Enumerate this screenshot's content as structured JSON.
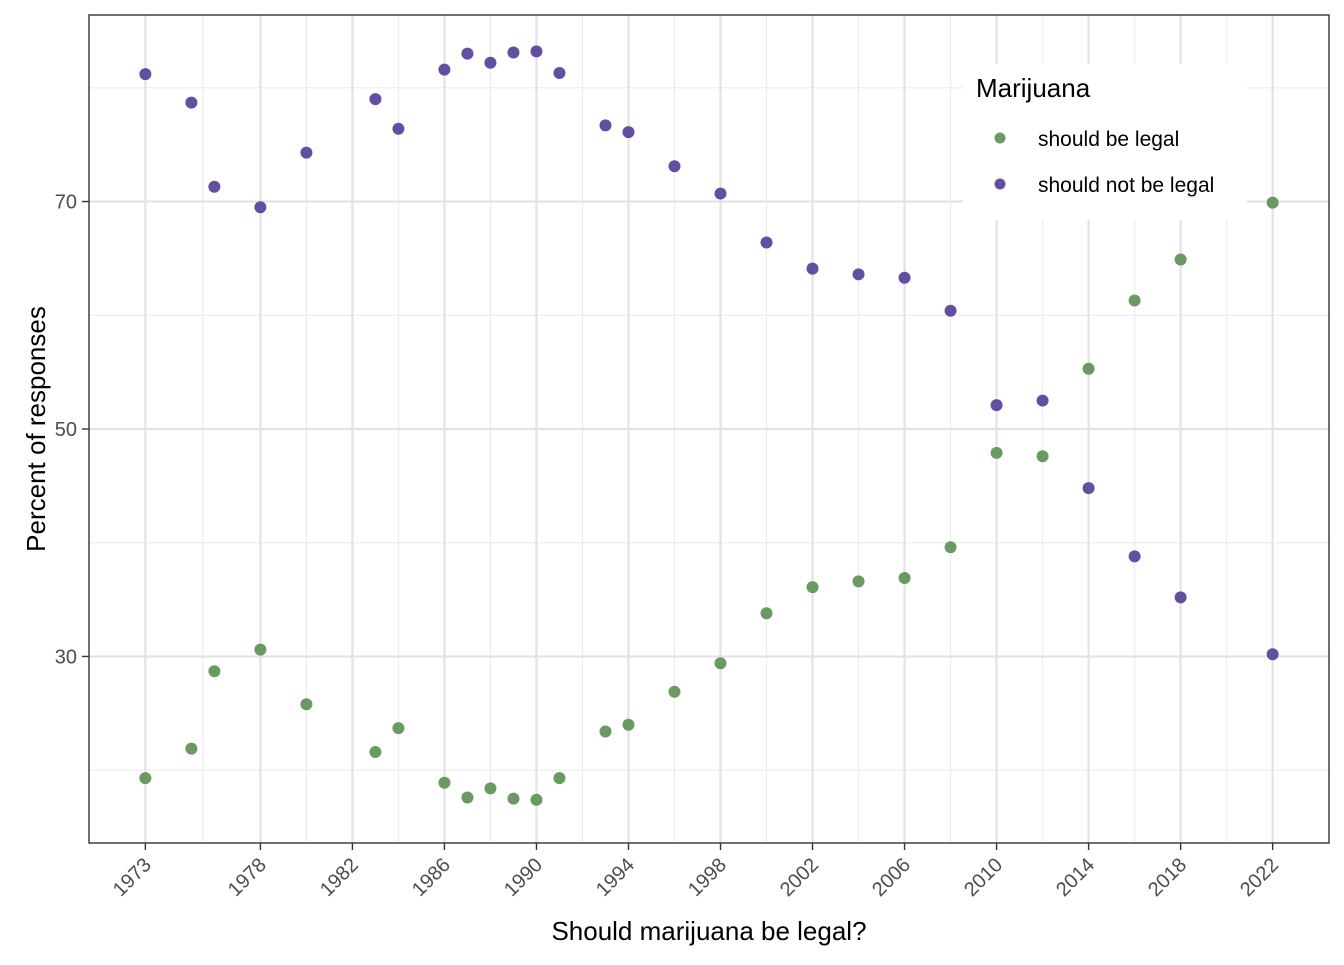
{
  "chart_data": {
    "type": "scatter",
    "title": "",
    "xlabel": "Should marijuana be legal?",
    "ylabel": "Percent of responses",
    "xlim": [
      1970.55,
      2024.45
    ],
    "ylim": [
      13.6,
      86.4
    ],
    "x_ticks": [
      1973,
      1978,
      1982,
      1986,
      1990,
      1994,
      1998,
      2002,
      2006,
      2010,
      2014,
      2018,
      2022
    ],
    "x_tick_labels": [
      "1973",
      "1978",
      "1982",
      "1986",
      "1990",
      "1994",
      "1998",
      "2002",
      "2006",
      "2010",
      "2014",
      "2018",
      "2022"
    ],
    "x_minor_gridlines": [
      1975.5,
      1980,
      1984,
      1988,
      1992,
      1996,
      2000,
      2004,
      2008,
      2012,
      2016,
      2020
    ],
    "y_ticks": [
      30,
      50,
      70
    ],
    "y_tick_labels": [
      "30",
      "50",
      "70"
    ],
    "y_minor_gridlines": [
      20,
      40,
      60,
      80
    ],
    "grid": true,
    "legend": {
      "title": "Marijuana",
      "position": "top-right"
    },
    "series": [
      {
        "name": "should be legal",
        "color": "#6a9a62",
        "points": [
          [
            1973,
            19.3
          ],
          [
            1975,
            21.9
          ],
          [
            1976,
            28.7
          ],
          [
            1978,
            30.6
          ],
          [
            1980,
            25.8
          ],
          [
            1983,
            21.6
          ],
          [
            1984,
            23.7
          ],
          [
            1986,
            18.9
          ],
          [
            1987,
            17.6
          ],
          [
            1988,
            18.4
          ],
          [
            1989,
            17.5
          ],
          [
            1990,
            17.4
          ],
          [
            1991,
            19.3
          ],
          [
            1993,
            23.4
          ],
          [
            1994,
            24.0
          ],
          [
            1996,
            26.9
          ],
          [
            1998,
            29.4
          ],
          [
            2000,
            33.8
          ],
          [
            2002,
            36.1
          ],
          [
            2004,
            36.6
          ],
          [
            2006,
            36.9
          ],
          [
            2008,
            39.6
          ],
          [
            2010,
            47.9
          ],
          [
            2012,
            47.6
          ],
          [
            2014,
            55.3
          ],
          [
            2016,
            61.3
          ],
          [
            2018,
            64.9
          ],
          [
            2022,
            69.9
          ]
        ]
      },
      {
        "name": "should not be legal",
        "color": "#634ea1",
        "points": [
          [
            1973,
            81.2
          ],
          [
            1975,
            78.7
          ],
          [
            1976,
            71.3
          ],
          [
            1978,
            69.5
          ],
          [
            1980,
            74.3
          ],
          [
            1983,
            79.0
          ],
          [
            1984,
            76.4
          ],
          [
            1986,
            81.6
          ],
          [
            1987,
            83.0
          ],
          [
            1988,
            82.2
          ],
          [
            1989,
            83.1
          ],
          [
            1990,
            83.2
          ],
          [
            1991,
            81.3
          ],
          [
            1993,
            76.7
          ],
          [
            1994,
            76.1
          ],
          [
            1996,
            73.1
          ],
          [
            1998,
            70.7
          ],
          [
            2000,
            66.4
          ],
          [
            2002,
            64.1
          ],
          [
            2004,
            63.6
          ],
          [
            2006,
            63.3
          ],
          [
            2008,
            60.4
          ],
          [
            2010,
            52.1
          ],
          [
            2012,
            52.5
          ],
          [
            2014,
            44.8
          ],
          [
            2016,
            38.8
          ],
          [
            2018,
            35.2
          ],
          [
            2022,
            30.2
          ]
        ]
      }
    ]
  }
}
